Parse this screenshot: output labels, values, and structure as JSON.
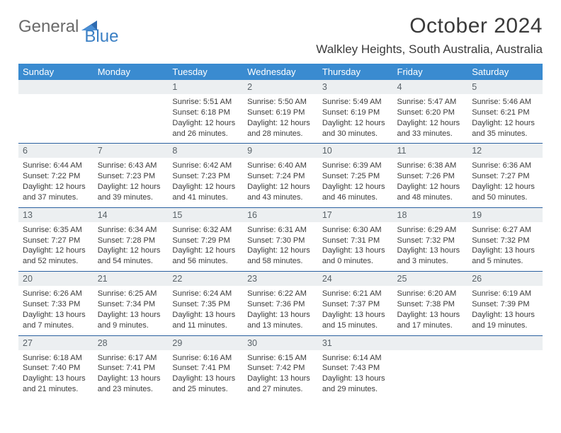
{
  "brand": {
    "text1": "General",
    "text2": "Blue"
  },
  "title": "October 2024",
  "location": "Walkley Heights, South Australia, Australia",
  "colors": {
    "header_bg": "#3a8bd0",
    "header_text": "#ffffff",
    "row_divider": "#2a60a0",
    "daynum_bg": "#eceff1",
    "brand_blue": "#3a7fc4",
    "brand_gray": "#6a6a6a"
  },
  "day_labels": [
    "Sunday",
    "Monday",
    "Tuesday",
    "Wednesday",
    "Thursday",
    "Friday",
    "Saturday"
  ],
  "cells": [
    {
      "day": "",
      "sunrise": "",
      "sunset": "",
      "daylight": ""
    },
    {
      "day": "",
      "sunrise": "",
      "sunset": "",
      "daylight": ""
    },
    {
      "day": "1",
      "sunrise": "Sunrise: 5:51 AM",
      "sunset": "Sunset: 6:18 PM",
      "daylight": "Daylight: 12 hours and 26 minutes."
    },
    {
      "day": "2",
      "sunrise": "Sunrise: 5:50 AM",
      "sunset": "Sunset: 6:19 PM",
      "daylight": "Daylight: 12 hours and 28 minutes."
    },
    {
      "day": "3",
      "sunrise": "Sunrise: 5:49 AM",
      "sunset": "Sunset: 6:19 PM",
      "daylight": "Daylight: 12 hours and 30 minutes."
    },
    {
      "day": "4",
      "sunrise": "Sunrise: 5:47 AM",
      "sunset": "Sunset: 6:20 PM",
      "daylight": "Daylight: 12 hours and 33 minutes."
    },
    {
      "day": "5",
      "sunrise": "Sunrise: 5:46 AM",
      "sunset": "Sunset: 6:21 PM",
      "daylight": "Daylight: 12 hours and 35 minutes."
    },
    {
      "day": "6",
      "sunrise": "Sunrise: 6:44 AM",
      "sunset": "Sunset: 7:22 PM",
      "daylight": "Daylight: 12 hours and 37 minutes."
    },
    {
      "day": "7",
      "sunrise": "Sunrise: 6:43 AM",
      "sunset": "Sunset: 7:23 PM",
      "daylight": "Daylight: 12 hours and 39 minutes."
    },
    {
      "day": "8",
      "sunrise": "Sunrise: 6:42 AM",
      "sunset": "Sunset: 7:23 PM",
      "daylight": "Daylight: 12 hours and 41 minutes."
    },
    {
      "day": "9",
      "sunrise": "Sunrise: 6:40 AM",
      "sunset": "Sunset: 7:24 PM",
      "daylight": "Daylight: 12 hours and 43 minutes."
    },
    {
      "day": "10",
      "sunrise": "Sunrise: 6:39 AM",
      "sunset": "Sunset: 7:25 PM",
      "daylight": "Daylight: 12 hours and 46 minutes."
    },
    {
      "day": "11",
      "sunrise": "Sunrise: 6:38 AM",
      "sunset": "Sunset: 7:26 PM",
      "daylight": "Daylight: 12 hours and 48 minutes."
    },
    {
      "day": "12",
      "sunrise": "Sunrise: 6:36 AM",
      "sunset": "Sunset: 7:27 PM",
      "daylight": "Daylight: 12 hours and 50 minutes."
    },
    {
      "day": "13",
      "sunrise": "Sunrise: 6:35 AM",
      "sunset": "Sunset: 7:27 PM",
      "daylight": "Daylight: 12 hours and 52 minutes."
    },
    {
      "day": "14",
      "sunrise": "Sunrise: 6:34 AM",
      "sunset": "Sunset: 7:28 PM",
      "daylight": "Daylight: 12 hours and 54 minutes."
    },
    {
      "day": "15",
      "sunrise": "Sunrise: 6:32 AM",
      "sunset": "Sunset: 7:29 PM",
      "daylight": "Daylight: 12 hours and 56 minutes."
    },
    {
      "day": "16",
      "sunrise": "Sunrise: 6:31 AM",
      "sunset": "Sunset: 7:30 PM",
      "daylight": "Daylight: 12 hours and 58 minutes."
    },
    {
      "day": "17",
      "sunrise": "Sunrise: 6:30 AM",
      "sunset": "Sunset: 7:31 PM",
      "daylight": "Daylight: 13 hours and 0 minutes."
    },
    {
      "day": "18",
      "sunrise": "Sunrise: 6:29 AM",
      "sunset": "Sunset: 7:32 PM",
      "daylight": "Daylight: 13 hours and 3 minutes."
    },
    {
      "day": "19",
      "sunrise": "Sunrise: 6:27 AM",
      "sunset": "Sunset: 7:32 PM",
      "daylight": "Daylight: 13 hours and 5 minutes."
    },
    {
      "day": "20",
      "sunrise": "Sunrise: 6:26 AM",
      "sunset": "Sunset: 7:33 PM",
      "daylight": "Daylight: 13 hours and 7 minutes."
    },
    {
      "day": "21",
      "sunrise": "Sunrise: 6:25 AM",
      "sunset": "Sunset: 7:34 PM",
      "daylight": "Daylight: 13 hours and 9 minutes."
    },
    {
      "day": "22",
      "sunrise": "Sunrise: 6:24 AM",
      "sunset": "Sunset: 7:35 PM",
      "daylight": "Daylight: 13 hours and 11 minutes."
    },
    {
      "day": "23",
      "sunrise": "Sunrise: 6:22 AM",
      "sunset": "Sunset: 7:36 PM",
      "daylight": "Daylight: 13 hours and 13 minutes."
    },
    {
      "day": "24",
      "sunrise": "Sunrise: 6:21 AM",
      "sunset": "Sunset: 7:37 PM",
      "daylight": "Daylight: 13 hours and 15 minutes."
    },
    {
      "day": "25",
      "sunrise": "Sunrise: 6:20 AM",
      "sunset": "Sunset: 7:38 PM",
      "daylight": "Daylight: 13 hours and 17 minutes."
    },
    {
      "day": "26",
      "sunrise": "Sunrise: 6:19 AM",
      "sunset": "Sunset: 7:39 PM",
      "daylight": "Daylight: 13 hours and 19 minutes."
    },
    {
      "day": "27",
      "sunrise": "Sunrise: 6:18 AM",
      "sunset": "Sunset: 7:40 PM",
      "daylight": "Daylight: 13 hours and 21 minutes."
    },
    {
      "day": "28",
      "sunrise": "Sunrise: 6:17 AM",
      "sunset": "Sunset: 7:41 PM",
      "daylight": "Daylight: 13 hours and 23 minutes."
    },
    {
      "day": "29",
      "sunrise": "Sunrise: 6:16 AM",
      "sunset": "Sunset: 7:41 PM",
      "daylight": "Daylight: 13 hours and 25 minutes."
    },
    {
      "day": "30",
      "sunrise": "Sunrise: 6:15 AM",
      "sunset": "Sunset: 7:42 PM",
      "daylight": "Daylight: 13 hours and 27 minutes."
    },
    {
      "day": "31",
      "sunrise": "Sunrise: 6:14 AM",
      "sunset": "Sunset: 7:43 PM",
      "daylight": "Daylight: 13 hours and 29 minutes."
    },
    {
      "day": "",
      "sunrise": "",
      "sunset": "",
      "daylight": ""
    },
    {
      "day": "",
      "sunrise": "",
      "sunset": "",
      "daylight": ""
    }
  ]
}
